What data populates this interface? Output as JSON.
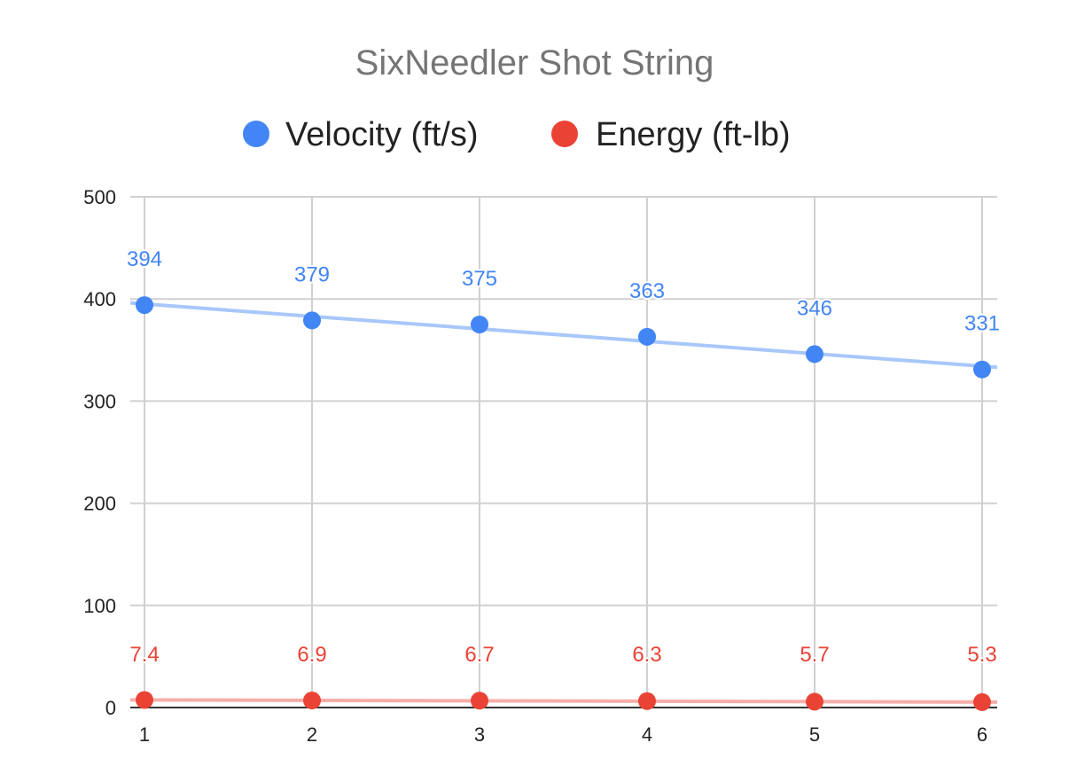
{
  "chart_data": {
    "type": "line",
    "title": "SixNeedler Shot String",
    "x": [
      1,
      2,
      3,
      4,
      5,
      6
    ],
    "xticks": [
      "1",
      "2",
      "3",
      "4",
      "5",
      "6"
    ],
    "ylim": [
      0,
      500
    ],
    "yticks": [
      "0",
      "100",
      "200",
      "300",
      "400",
      "500"
    ],
    "grid": true,
    "legend": "top",
    "trendlines": true,
    "data_labels": true,
    "series": [
      {
        "name": "Velocity (ft/s)",
        "color": "#4285f4",
        "trend_color": "#a8c7fa",
        "values": [
          394,
          379,
          375,
          363,
          346,
          331
        ],
        "labels": [
          "394",
          "379",
          "375",
          "363",
          "346",
          "331"
        ]
      },
      {
        "name": "Energy (ft-lb)",
        "color": "#ea4335",
        "trend_color": "#f6aea9",
        "values": [
          7.4,
          6.9,
          6.7,
          6.3,
          5.7,
          5.3
        ],
        "labels": [
          "7.4",
          "6.9",
          "6.7",
          "6.3",
          "5.7",
          "5.3"
        ]
      }
    ]
  }
}
